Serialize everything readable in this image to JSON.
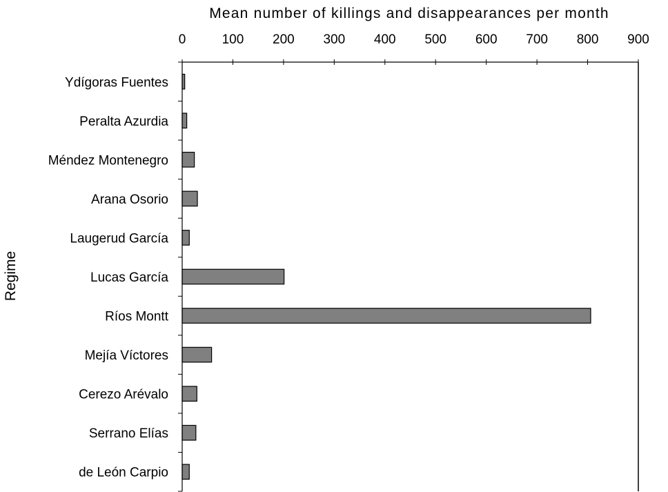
{
  "chart_data": {
    "type": "bar",
    "orientation": "horizontal",
    "title": "",
    "xlabel": "Mean number of killings and disappearances per month",
    "ylabel": "Regime",
    "xlim": [
      0,
      900
    ],
    "xticks": [
      0,
      100,
      200,
      300,
      400,
      500,
      600,
      700,
      800,
      900
    ],
    "x_axis_position": "top",
    "grid": false,
    "legend": "none",
    "categories": [
      "Ydígoras Fuentes",
      "Peralta Azurdia",
      "Méndez Montenegro",
      "Arana Osorio",
      "Laugerud García",
      "Lucas García",
      "Ríos Montt",
      "Mejía Víctores",
      "Cerezo Arévalo",
      "Serrano Elías",
      "de León Carpio"
    ],
    "values": [
      5,
      9,
      24,
      30,
      14,
      201,
      806,
      58,
      29,
      27,
      14
    ],
    "bar_color": "#808080",
    "bar_edge_color": "#000000"
  }
}
